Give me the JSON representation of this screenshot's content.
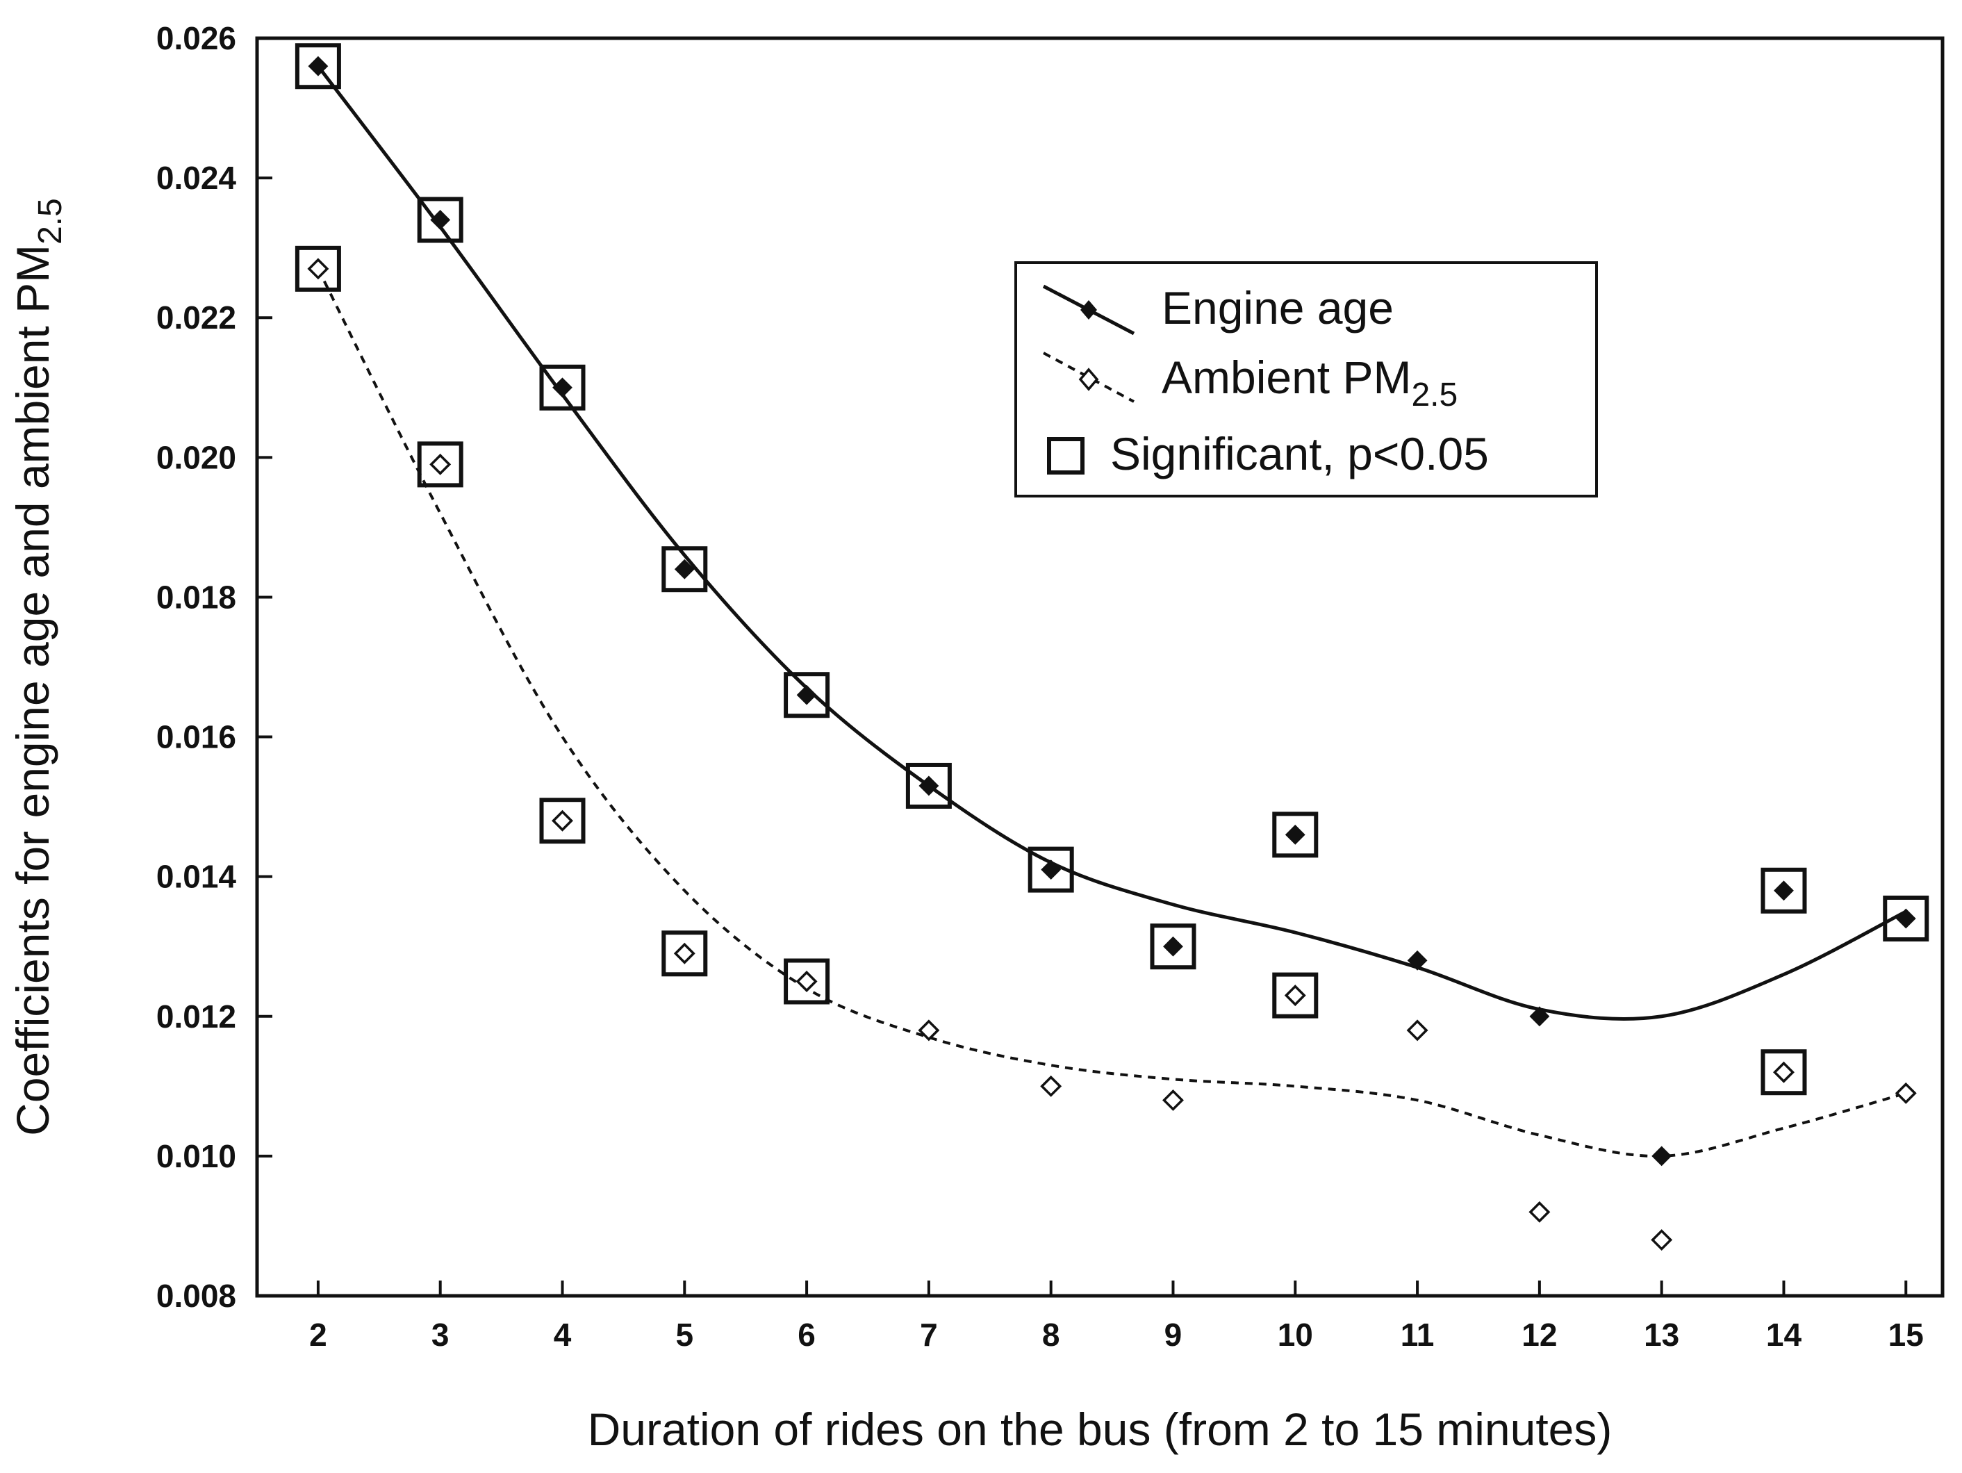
{
  "chart_data": {
    "type": "scatter",
    "xlabel": "Duration of rides on the bus (from 2 to 15 minutes)",
    "ylabel": "Coefficients for engine age and ambient PM",
    "ylabel_subscript": "2.5",
    "x": [
      2,
      3,
      4,
      5,
      6,
      7,
      8,
      9,
      10,
      11,
      12,
      13,
      14,
      15
    ],
    "xlim": [
      1.5,
      15.3
    ],
    "ylim": [
      0.008,
      0.026
    ],
    "x_ticks": [
      "2",
      "3",
      "4",
      "5",
      "6",
      "7",
      "8",
      "9",
      "10",
      "11",
      "12",
      "13",
      "14",
      "15"
    ],
    "y_ticks": [
      "0.008",
      "0.010",
      "0.012",
      "0.014",
      "0.016",
      "0.018",
      "0.020",
      "0.022",
      "0.024",
      "0.026"
    ],
    "grid": false,
    "legend_position": "top-right",
    "series": [
      {
        "name": "Engine age",
        "marker": "filled-diamond",
        "line": "solid",
        "values": [
          0.0256,
          0.0234,
          0.021,
          0.0184,
          0.0166,
          0.0153,
          0.0141,
          0.013,
          0.0146,
          0.0128,
          0.012,
          0.01,
          0.0138,
          0.0134
        ],
        "significant": [
          true,
          true,
          true,
          true,
          true,
          true,
          true,
          true,
          true,
          false,
          false,
          false,
          true,
          true
        ],
        "smooth_curve": [
          0.0256,
          0.0233,
          0.0209,
          0.0186,
          0.0167,
          0.0153,
          0.0142,
          0.0136,
          0.0132,
          0.0127,
          0.0121,
          0.012,
          0.0126,
          0.0135
        ]
      },
      {
        "name": "Ambient PM",
        "name_subscript": "2.5",
        "marker": "open-diamond",
        "line": "dashed",
        "values": [
          0.0227,
          0.0199,
          0.0148,
          0.0129,
          0.0125,
          0.0118,
          0.011,
          0.0108,
          0.0123,
          0.0118,
          0.0092,
          0.0088,
          0.0112,
          0.0109
        ],
        "significant": [
          true,
          true,
          true,
          true,
          true,
          false,
          false,
          false,
          true,
          false,
          false,
          false,
          true,
          false
        ],
        "smooth_curve": [
          0.0227,
          0.0192,
          0.016,
          0.0138,
          0.0124,
          0.0117,
          0.0113,
          0.0111,
          0.011,
          0.0108,
          0.0103,
          0.01,
          0.0104,
          0.0109
        ]
      }
    ],
    "significance_marker": {
      "name": "Significant, p<0.05",
      "marker": "open-square"
    }
  }
}
